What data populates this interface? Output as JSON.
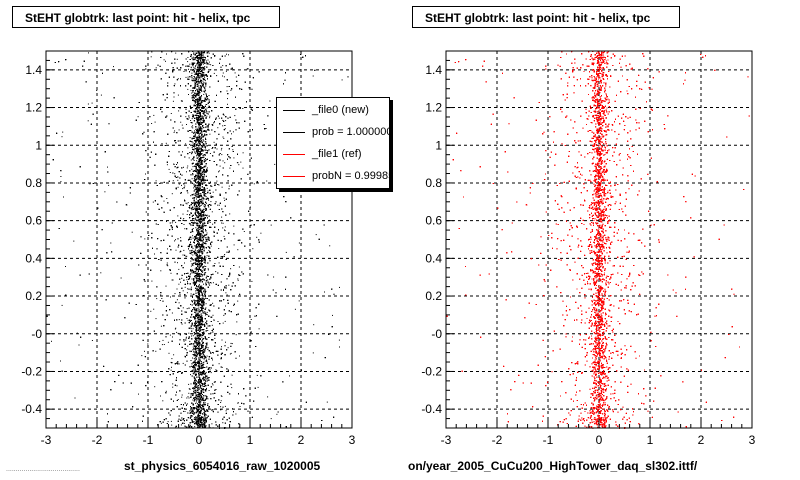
{
  "chart_data": [
    {
      "type": "scatter",
      "title": "StEHT globtrk: last point: hit - helix, tpc",
      "xlabel": "st_physics_6054016_raw_1020005",
      "ylabel": "",
      "xlim": [
        -3,
        3
      ],
      "ylim": [
        -0.5,
        1.5
      ],
      "x_ticks": [
        -3,
        -2,
        -1,
        0,
        1,
        2,
        3
      ],
      "x_tick_labels": [
        "-3",
        "-2",
        "-1",
        "0",
        "1",
        "2",
        "3"
      ],
      "y_ticks": [
        -0.4,
        -0.2,
        0,
        0.2,
        0.4,
        0.6,
        0.8,
        1,
        1.2,
        1.4
      ],
      "y_tick_labels": [
        "-0.4",
        "-0.2",
        "-0",
        "0.2",
        "0.4",
        "0.6",
        "0.8",
        "1",
        "1.2",
        "1.4"
      ],
      "grid": true,
      "legend_position": "top-right",
      "series": [
        {
          "name": "_file0 (new)",
          "color": "#000000",
          "x_center": 0.0,
          "x_core_sigma": 0.08,
          "x_halo_sigma": 0.45,
          "x_tail_range": [
            -3,
            3
          ],
          "y_range": [
            -0.5,
            1.5
          ]
        }
      ],
      "legend": [
        {
          "label": "_file0 (new)",
          "color": "#000000"
        },
        {
          "label": "prob = 1.000000",
          "color": "#000000"
        },
        {
          "label": "_file1 (ref)",
          "color": "#ff0000"
        },
        {
          "label": "probN = 0.999850",
          "color": "#ff0000"
        }
      ]
    },
    {
      "type": "scatter",
      "title": "StEHT globtrk: last point: hit - helix, tpc",
      "xlabel": "on/year_2005_CuCu200_HighTower_daq_sl302.ittf/",
      "ylabel": "",
      "xlim": [
        -3,
        3
      ],
      "ylim": [
        -0.5,
        1.5
      ],
      "x_ticks": [
        -3,
        -2,
        -1,
        0,
        1,
        2,
        3
      ],
      "x_tick_labels": [
        "-3",
        "-2",
        "-1",
        "0",
        "1",
        "2",
        "3"
      ],
      "y_ticks": [
        -0.4,
        -0.2,
        0,
        0.2,
        0.4,
        0.6,
        0.8,
        1,
        1.2,
        1.4
      ],
      "y_tick_labels": [
        "-0.4",
        "-0.2",
        "-0",
        "0.2",
        "0.4",
        "0.6",
        "0.8",
        "1",
        "1.2",
        "1.4"
      ],
      "grid": true,
      "series": [
        {
          "name": "_file1 (ref)",
          "color": "#ff0000",
          "x_center": 0.0,
          "x_core_sigma": 0.08,
          "x_halo_sigma": 0.45,
          "x_tail_range": [
            -3,
            3
          ],
          "y_range": [
            -0.5,
            1.5
          ]
        }
      ]
    }
  ],
  "footer_note": "......................................"
}
